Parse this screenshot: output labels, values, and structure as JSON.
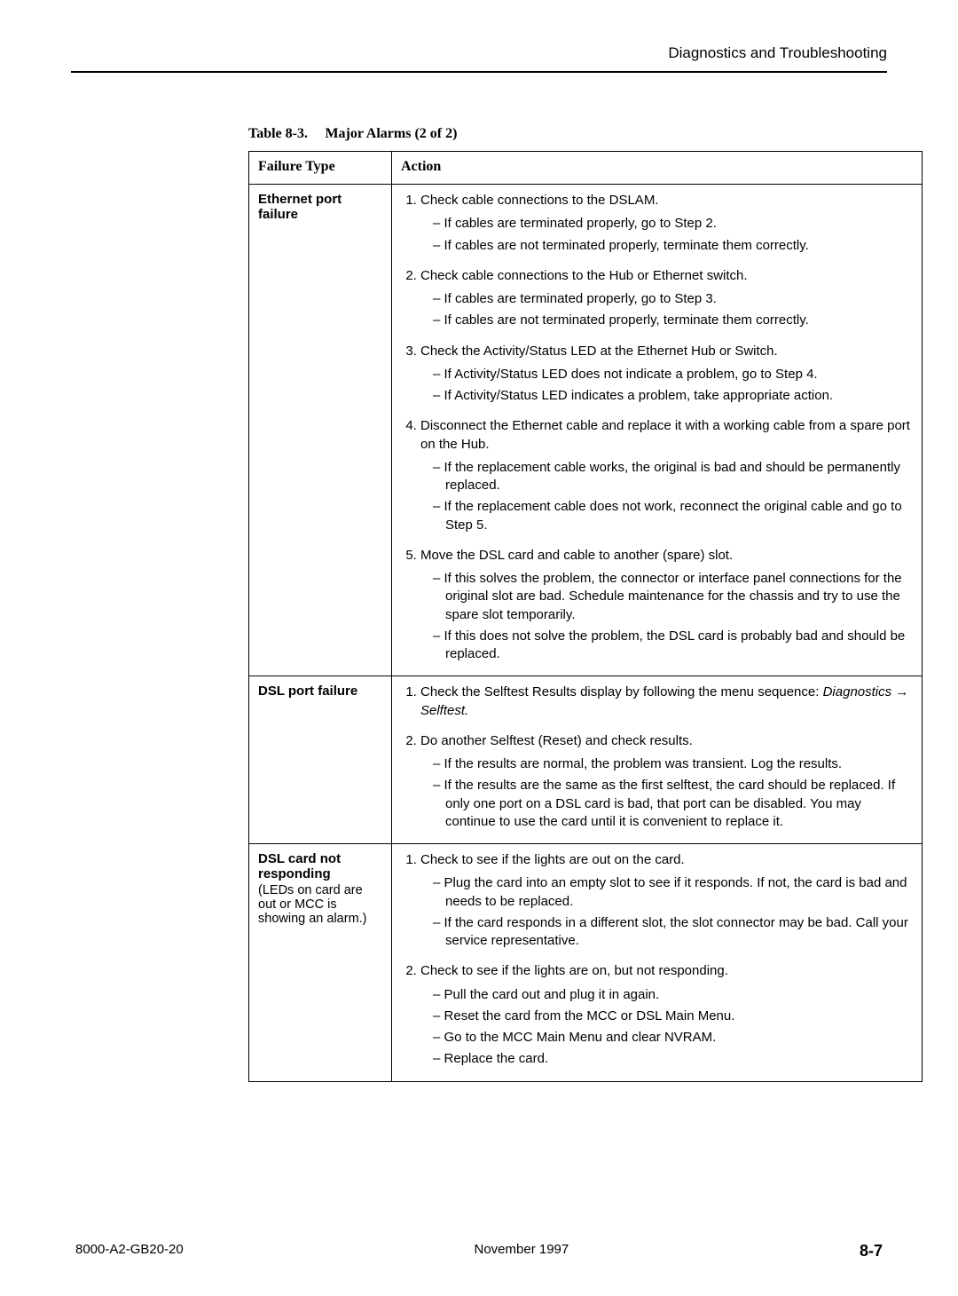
{
  "header": {
    "section_title": "Diagnostics and Troubleshooting"
  },
  "table": {
    "number": "Table 8-3.",
    "title": "Major Alarms (2 of 2)",
    "columns": {
      "c1": "Failure Type",
      "c2": "Action"
    },
    "rows": [
      {
        "failure_title": "Ethernet port failure",
        "failure_sub": "",
        "steps": [
          {
            "text": "Check cable connections to the DSLAM.",
            "subs": [
              "If cables are terminated properly, go to Step 2.",
              "If cables are not terminated properly, terminate them correctly."
            ]
          },
          {
            "text": "Check cable connections to the Hub or Ethernet switch.",
            "subs": [
              "If cables are terminated properly, go to Step 3.",
              "If cables are not terminated properly, terminate them correctly."
            ]
          },
          {
            "text": "Check the Activity/Status LED at the Ethernet Hub or Switch.",
            "subs": [
              "If Activity/Status LED does not indicate a problem, go to Step 4.",
              "If Activity/Status LED indicates a problem, take appropriate action."
            ]
          },
          {
            "text": "Disconnect the Ethernet cable and replace it with a working cable from a spare port on the Hub.",
            "subs": [
              "If the replacement cable works, the original is bad and should be permanently replaced.",
              "If the replacement cable does not work, reconnect the original cable and go to Step 5."
            ]
          },
          {
            "text": "Move the DSL card and cable to another (spare) slot.",
            "subs": [
              "If this solves the problem, the connector or interface panel connections for the original slot are bad. Schedule maintenance for the chassis and try to use the spare slot temporarily.",
              "If this does not solve the problem, the DSL card is probably bad and should be replaced."
            ]
          }
        ]
      },
      {
        "failure_title": "DSL port failure",
        "failure_sub": "",
        "steps": [
          {
            "text_pre": "Check the Selftest Results display by following the menu sequence: ",
            "text_italic": "Diagnostics → Selftest.",
            "subs": []
          },
          {
            "text": "Do another Selftest (Reset) and check results.",
            "subs": [
              "If the results are normal, the problem was transient. Log the results.",
              "If the results are the same as the first selftest, the card should be replaced. If only one port on a DSL card is bad, that port can be disabled. You may continue to use the card until it is convenient to replace it."
            ]
          }
        ]
      },
      {
        "failure_title": "DSL card not responding",
        "failure_sub": "(LEDs on card are out or MCC is showing an alarm.)",
        "steps": [
          {
            "text": "Check to see if the lights are out on the card.",
            "subs": [
              "Plug the card into an empty slot to see if it responds. If not, the card is bad and needs to be replaced.",
              "If the card responds in a different slot, the slot connector may be bad. Call your service representative."
            ]
          },
          {
            "text": "Check to see if the lights are on, but not responding.",
            "subs": [
              "Pull the card out and plug it in again.",
              "Reset the card from the MCC or DSL Main Menu.",
              "Go to the MCC Main Menu and clear NVRAM.",
              "Replace the card."
            ]
          }
        ]
      }
    ]
  },
  "footer": {
    "doc_id": "8000-A2-GB20-20",
    "date": "November 1997",
    "page": "8-7"
  }
}
